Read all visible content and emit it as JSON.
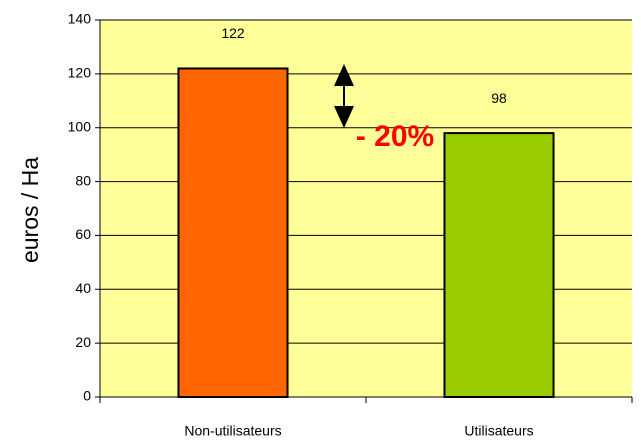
{
  "chart_data": {
    "type": "bar",
    "y_label": "euros / Ha",
    "categories": [
      "Non-utilisateurs",
      "Utilisateurs"
    ],
    "values": [
      122,
      98
    ],
    "colors": [
      "#ff6600",
      "#99cc00"
    ],
    "annotation": "- 20%",
    "annotation_color": "#ff0000",
    "plot_background": "#ffff99",
    "ylim": [
      0,
      140
    ],
    "yticks": [
      0,
      20,
      40,
      60,
      80,
      100,
      120,
      140
    ],
    "grid": true
  }
}
